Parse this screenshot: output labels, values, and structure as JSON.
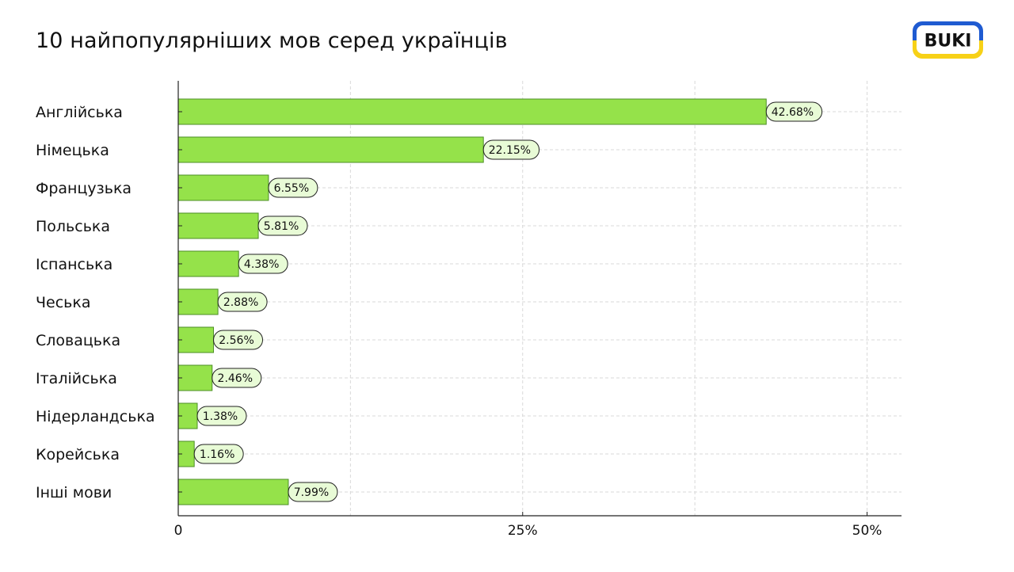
{
  "chart_data": {
    "type": "bar",
    "orientation": "horizontal",
    "title": "10 найпопулярніших мов серед українців",
    "categories": [
      "Англійська",
      "Німецька",
      "Французька",
      "Польська",
      "Іспанська",
      "Чеська",
      "Словацька",
      "Італійська",
      "Нідерландська",
      "Корейська",
      "Інші мови"
    ],
    "values": [
      42.68,
      22.15,
      6.55,
      5.81,
      4.38,
      2.88,
      2.56,
      2.46,
      1.38,
      1.16,
      7.99
    ],
    "value_labels": [
      "42.68%",
      "22.15%",
      "6.55%",
      "5.81%",
      "4.38%",
      "2.88%",
      "2.56%",
      "2.46%",
      "1.38%",
      "1.16%",
      "7.99%"
    ],
    "x_ticks": [
      0,
      25,
      50
    ],
    "x_tick_labels": [
      "0",
      "25%",
      "50%"
    ],
    "xlim": [
      0,
      52.5
    ],
    "grid": true,
    "bar_color": "#95e24a",
    "bar_stroke": "#4d8f27",
    "label_bg": "#e8fbd6",
    "grid_color": "#d9d9d9"
  },
  "logo": {
    "text": "BUKI",
    "colors": [
      "#1f5bd1",
      "#f7d117"
    ]
  }
}
